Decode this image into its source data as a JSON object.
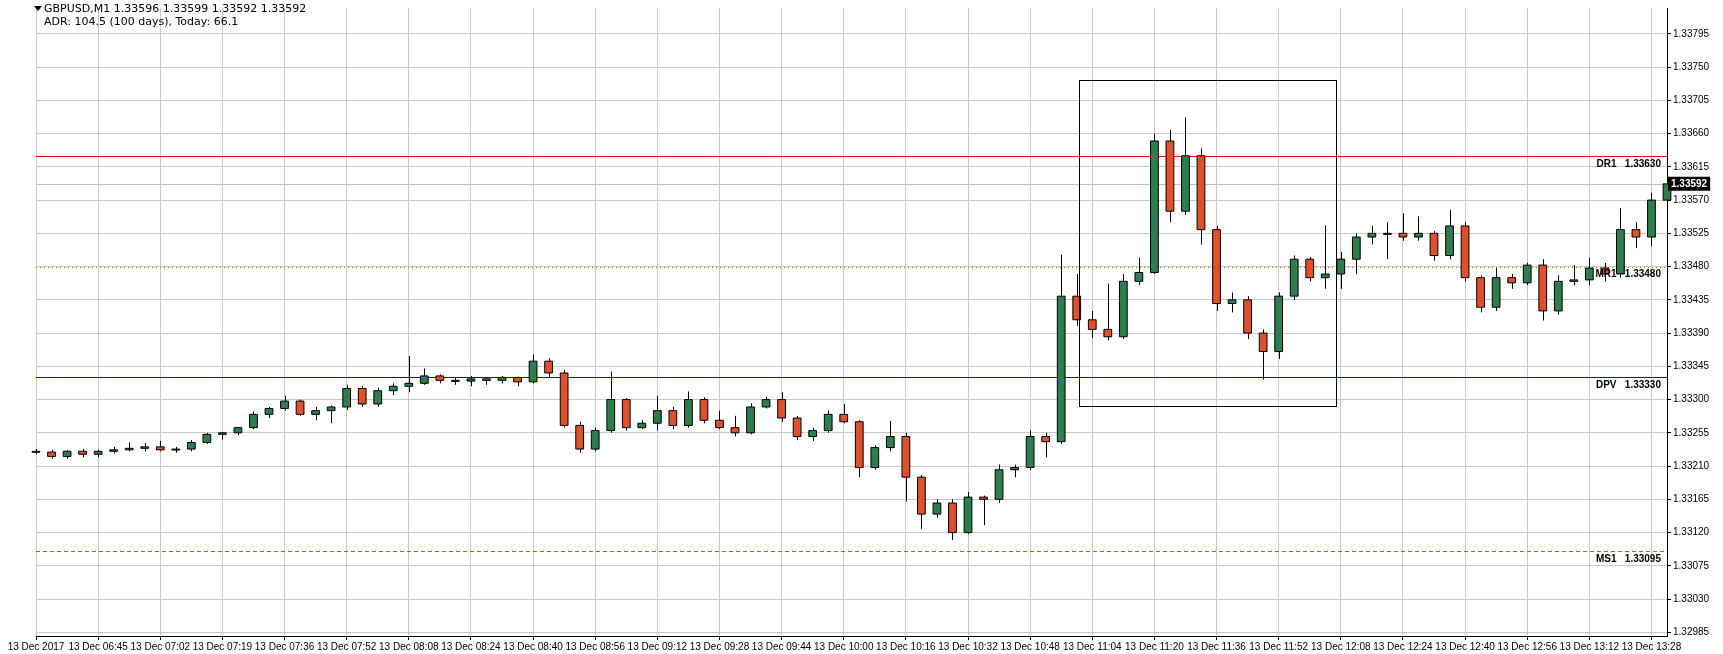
{
  "chart_data": {
    "type": "candlestick",
    "title": "GBPUSD,M1  1.33596 1.33599 1.33592 1.33592",
    "subtitle": "ADR: 104.5 (100 days), Today: 66.1",
    "categories": [
      "13 Dec 2017",
      null,
      null,
      null,
      "13 Dec 06:45",
      null,
      null,
      null,
      "13 Dec 07:02",
      null,
      null,
      null,
      "13 Dec 07:19",
      null,
      null,
      null,
      "13 Dec 07:36",
      null,
      null,
      null,
      "13 Dec 07:52",
      null,
      null,
      null,
      "13 Dec 08:08",
      null,
      null,
      null,
      "13 Dec 08:24",
      null,
      null,
      null,
      "13 Dec 08:40",
      null,
      null,
      null,
      "13 Dec 08:56",
      null,
      null,
      null,
      "13 Dec 09:12",
      null,
      null,
      null,
      "13 Dec 09:28",
      null,
      null,
      null,
      "13 Dec 09:44",
      null,
      null,
      null,
      "13 Dec 10:00",
      null,
      null,
      null,
      "13 Dec 10:16",
      null,
      null,
      null,
      "13 Dec 10:32",
      null,
      null,
      null,
      "13 Dec 10:48",
      null,
      null,
      null,
      "13 Dec 11:04",
      null,
      null,
      null,
      "13 Dec 11:20",
      null,
      null,
      null,
      "13 Dec 11:36",
      null,
      null,
      null,
      "13 Dec 11:52",
      null,
      null,
      null,
      "13 Dec 12:08",
      null,
      null,
      null,
      "13 Dec 12:24",
      null,
      null,
      null,
      "13 Dec 12:40",
      null,
      null,
      null,
      "13 Dec 12:56",
      null,
      null,
      null,
      "13 Dec 13:12",
      null,
      null,
      null,
      "13 Dec 13:28",
      null
    ],
    "ohlc": [
      [
        1.3323,
        1.33233,
        1.33226,
        1.33229
      ],
      [
        1.33229,
        1.33232,
        1.3322,
        1.33223
      ],
      [
        1.33223,
        1.33232,
        1.3322,
        1.3323
      ],
      [
        1.3323,
        1.33233,
        1.33222,
        1.33226
      ],
      [
        1.33226,
        1.33232,
        1.33222,
        1.3323
      ],
      [
        1.3323,
        1.33236,
        1.33227,
        1.33232
      ],
      [
        1.33232,
        1.33242,
        1.3323,
        1.33234
      ],
      [
        1.33234,
        1.33241,
        1.3323,
        1.33236
      ],
      [
        1.33236,
        1.33244,
        1.3323,
        1.33232
      ],
      [
        1.33232,
        1.33236,
        1.33228,
        1.33233
      ],
      [
        1.33233,
        1.33245,
        1.3323,
        1.33242
      ],
      [
        1.33242,
        1.33255,
        1.3324,
        1.33253
      ],
      [
        1.33253,
        1.33256,
        1.33246,
        1.33255
      ],
      [
        1.33255,
        1.33263,
        1.33252,
        1.33262
      ],
      [
        1.33262,
        1.33284,
        1.3326,
        1.3328
      ],
      [
        1.3328,
        1.3329,
        1.33275,
        1.33288
      ],
      [
        1.33288,
        1.33305,
        1.33285,
        1.33298
      ],
      [
        1.33298,
        1.333,
        1.33278,
        1.3328
      ],
      [
        1.3328,
        1.3329,
        1.33272,
        1.33285
      ],
      [
        1.33285,
        1.33292,
        1.33268,
        1.3329
      ],
      [
        1.3329,
        1.3332,
        1.33286,
        1.33315
      ],
      [
        1.33315,
        1.33318,
        1.3329,
        1.33294
      ],
      [
        1.33294,
        1.33316,
        1.3329,
        1.33312
      ],
      [
        1.33312,
        1.33322,
        1.33306,
        1.33318
      ],
      [
        1.33318,
        1.33359,
        1.3331,
        1.33322
      ],
      [
        1.33322,
        1.33342,
        1.3332,
        1.33332
      ],
      [
        1.33332,
        1.33334,
        1.33322,
        1.33326
      ],
      [
        1.33326,
        1.3333,
        1.3332,
        1.33325
      ],
      [
        1.33325,
        1.33332,
        1.33318,
        1.33328
      ],
      [
        1.33328,
        1.3333,
        1.3332,
        1.33326
      ],
      [
        1.33326,
        1.33332,
        1.33322,
        1.3333
      ],
      [
        1.3333,
        1.33331,
        1.33318,
        1.33324
      ],
      [
        1.33324,
        1.33361,
        1.33322,
        1.33352
      ],
      [
        1.33352,
        1.33356,
        1.3333,
        1.33336
      ],
      [
        1.33336,
        1.3334,
        1.33262,
        1.33265
      ],
      [
        1.33265,
        1.3327,
        1.33228,
        1.33233
      ],
      [
        1.33233,
        1.33262,
        1.3323,
        1.33258
      ],
      [
        1.33258,
        1.33338,
        1.33255,
        1.333
      ],
      [
        1.333,
        1.33302,
        1.33258,
        1.33262
      ],
      [
        1.33262,
        1.33272,
        1.3326,
        1.33268
      ],
      [
        1.33268,
        1.33305,
        1.33258,
        1.33285
      ],
      [
        1.33285,
        1.3329,
        1.3326,
        1.33265
      ],
      [
        1.33265,
        1.33311,
        1.33262,
        1.333
      ],
      [
        1.333,
        1.33303,
        1.33268,
        1.33272
      ],
      [
        1.33272,
        1.33285,
        1.3326,
        1.33262
      ],
      [
        1.33262,
        1.33278,
        1.3325,
        1.33255
      ],
      [
        1.33255,
        1.33295,
        1.33253,
        1.3329
      ],
      [
        1.3329,
        1.33304,
        1.33288,
        1.333
      ],
      [
        1.333,
        1.3331,
        1.3327,
        1.33275
      ],
      [
        1.33275,
        1.33278,
        1.33245,
        1.3325
      ],
      [
        1.3325,
        1.33262,
        1.33244,
        1.33258
      ],
      [
        1.33258,
        1.33285,
        1.33255,
        1.3328
      ],
      [
        1.3328,
        1.33294,
        1.33268,
        1.3327
      ],
      [
        1.3327,
        1.33272,
        1.33195,
        1.33208
      ],
      [
        1.33208,
        1.33238,
        1.33205,
        1.33235
      ],
      [
        1.33235,
        1.33271,
        1.3323,
        1.3325
      ],
      [
        1.3325,
        1.33255,
        1.33162,
        1.33195
      ],
      [
        1.33195,
        1.33198,
        1.33125,
        1.33145
      ],
      [
        1.33145,
        1.33165,
        1.3314,
        1.3316
      ],
      [
        1.3316,
        1.33165,
        1.3311,
        1.3312
      ],
      [
        1.3312,
        1.33175,
        1.33118,
        1.33168
      ],
      [
        1.33168,
        1.3317,
        1.3313,
        1.33165
      ],
      [
        1.33165,
        1.33212,
        1.3316,
        1.33205
      ],
      [
        1.33205,
        1.33212,
        1.33195,
        1.33208
      ],
      [
        1.33208,
        1.33258,
        1.33205,
        1.3325
      ],
      [
        1.3325,
        1.33255,
        1.33222,
        1.33243
      ],
      [
        1.33243,
        1.33496,
        1.3324,
        1.3344
      ],
      [
        1.3344,
        1.3347,
        1.334,
        1.33408
      ],
      [
        1.33408,
        1.3342,
        1.33383,
        1.33395
      ],
      [
        1.33395,
        1.33457,
        1.3338,
        1.33385
      ],
      [
        1.33385,
        1.3347,
        1.33382,
        1.3346
      ],
      [
        1.3346,
        1.33492,
        1.33455,
        1.33472
      ],
      [
        1.33472,
        1.3366,
        1.3347,
        1.3365
      ],
      [
        1.3365,
        1.33665,
        1.3354,
        1.33555
      ],
      [
        1.33555,
        1.33682,
        1.3355,
        1.3363
      ],
      [
        1.3363,
        1.3364,
        1.3351,
        1.3353
      ],
      [
        1.3353,
        1.33535,
        1.3342,
        1.3343
      ],
      [
        1.3343,
        1.33445,
        1.33418,
        1.33435
      ],
      [
        1.33435,
        1.3344,
        1.33382,
        1.3339
      ],
      [
        1.3339,
        1.33395,
        1.33327,
        1.33365
      ],
      [
        1.33365,
        1.33445,
        1.33355,
        1.3344
      ],
      [
        1.3344,
        1.33495,
        1.33435,
        1.3349
      ],
      [
        1.3349,
        1.33493,
        1.3346,
        1.33465
      ],
      [
        1.33465,
        1.33536,
        1.3345,
        1.3347
      ],
      [
        1.3347,
        1.335,
        1.3345,
        1.3349
      ],
      [
        1.3349,
        1.33525,
        1.3347,
        1.3352
      ],
      [
        1.3352,
        1.33535,
        1.3351,
        1.33525
      ],
      [
        1.33525,
        1.3354,
        1.3349,
        1.33525
      ],
      [
        1.33525,
        1.33552,
        1.33515,
        1.3352
      ],
      [
        1.3352,
        1.33548,
        1.33515,
        1.33525
      ],
      [
        1.33525,
        1.33528,
        1.33488,
        1.33495
      ],
      [
        1.33495,
        1.33557,
        1.3349,
        1.33535
      ],
      [
        1.33535,
        1.3354,
        1.3346,
        1.33465
      ],
      [
        1.33465,
        1.33468,
        1.33418,
        1.33425
      ],
      [
        1.33425,
        1.33478,
        1.3342,
        1.33465
      ],
      [
        1.33465,
        1.3347,
        1.3345,
        1.33458
      ],
      [
        1.33458,
        1.33485,
        1.33455,
        1.33482
      ],
      [
        1.33482,
        1.3349,
        1.33407,
        1.3342
      ],
      [
        1.3342,
        1.33468,
        1.33415,
        1.3346
      ],
      [
        1.3346,
        1.33482,
        1.33455,
        1.33462
      ],
      [
        1.33462,
        1.33492,
        1.33455,
        1.33478
      ],
      [
        1.33478,
        1.33485,
        1.3346,
        1.3347
      ],
      [
        1.3347,
        1.33559,
        1.33465,
        1.3353
      ],
      [
        1.3353,
        1.3354,
        1.33505,
        1.3352
      ],
      [
        1.3352,
        1.3358,
        1.33508,
        1.3357
      ],
      [
        1.3357,
        1.33615,
        1.3356,
        1.33592
      ]
    ],
    "ylim": [
      1.3298,
      1.3383
    ],
    "yticks": [
      {
        "value": 1.32985,
        "label": "1.32985"
      },
      {
        "value": 1.3303,
        "label": "1.33030"
      },
      {
        "value": 1.33075,
        "label": "1.33075"
      },
      {
        "value": 1.3312,
        "label": "1.33120"
      },
      {
        "value": 1.33165,
        "label": "1.33165"
      },
      {
        "value": 1.3321,
        "label": "1.33210"
      },
      {
        "value": 1.33255,
        "label": "1.33255"
      },
      {
        "value": 1.333,
        "label": "1.33300"
      },
      {
        "value": 1.33345,
        "label": "1.33345"
      },
      {
        "value": 1.3339,
        "label": "1.33390"
      },
      {
        "value": 1.33435,
        "label": "1.33435"
      },
      {
        "value": 1.3348,
        "label": "1.33480"
      },
      {
        "value": 1.33525,
        "label": "1.33525"
      },
      {
        "value": 1.3357,
        "label": "1.33570"
      },
      {
        "value": 1.33615,
        "label": "1.33615"
      },
      {
        "value": 1.3366,
        "label": "1.33660"
      },
      {
        "value": 1.33705,
        "label": "1.33705"
      },
      {
        "value": 1.3375,
        "label": "1.33750"
      },
      {
        "value": 1.33795,
        "label": "1.33795"
      }
    ],
    "grid": true,
    "legend": false,
    "ref_lines": [
      {
        "axis": "y",
        "value": 1.3363,
        "label": "DR1   1.33630",
        "color": "#ff0000",
        "line_style": "solid"
      },
      {
        "axis": "y",
        "value": 1.33592,
        "label": "1.33592",
        "color": "#c0c0c0",
        "line_style": "solid"
      },
      {
        "axis": "y",
        "value": 1.3348,
        "label": "MR1   1.33480",
        "color": "#808000",
        "line_style": "dotted"
      },
      {
        "axis": "y",
        "value": 1.3333,
        "label": "DPV   1.33330",
        "color": "#0000ff",
        "line_style": "solid"
      },
      {
        "axis": "y",
        "value": 1.33095,
        "label": "MS1   1.33095",
        "color": "#808000",
        "line_style": "dashed"
      }
    ]
  }
}
